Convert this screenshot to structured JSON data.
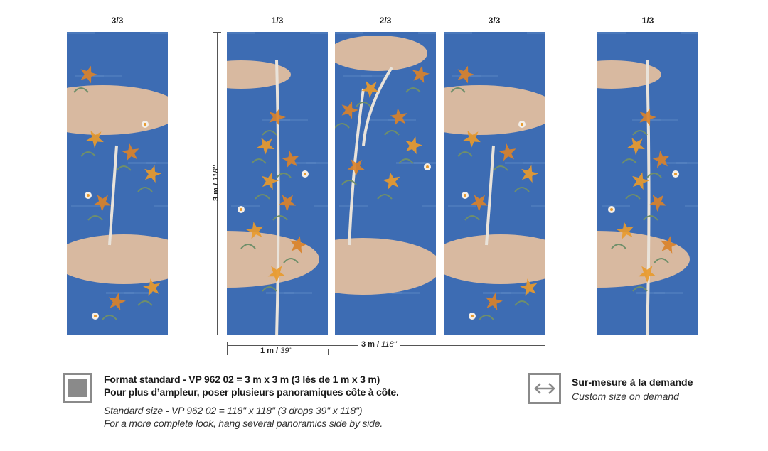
{
  "panels": [
    {
      "label": "3/3",
      "variant": "c"
    },
    {
      "label": "1/3",
      "variant": "a"
    },
    {
      "label": "2/3",
      "variant": "b"
    },
    {
      "label": "3/3",
      "variant": "c"
    },
    {
      "label": "1/3",
      "variant": "a"
    }
  ],
  "dimensions": {
    "height_main": "3 m / ",
    "height_alt": "118''",
    "panel_width_main": "1 m / ",
    "panel_width_alt": "39''",
    "total_width_main": "3 m / ",
    "total_width_alt": "118''"
  },
  "standard": {
    "title": "Format standard - VP 962 02 = 3 m x 3 m (3 lés de 1 m x 3 m)",
    "subtitle": "Pour plus d’ampleur, poser plusieurs panoramiques côte à côte.",
    "en_title": "Standard size - VP 962 02 = 118'' x 118'' (3 drops 39'' x 118'')",
    "en_subtitle": "For a more complete look, hang several panoramics side by side."
  },
  "custom": {
    "title": "Sur-mesure à la demande",
    "subtitle": "Custom size on demand"
  },
  "colors": {
    "sky_blue": "#3d6cb3",
    "sand": "#d8b9a0",
    "orange": "#e89a2c",
    "frame_gray": "#8a8a8a"
  },
  "icons": {
    "standard": "filled-square-icon",
    "custom": "double-arrow-icon"
  }
}
